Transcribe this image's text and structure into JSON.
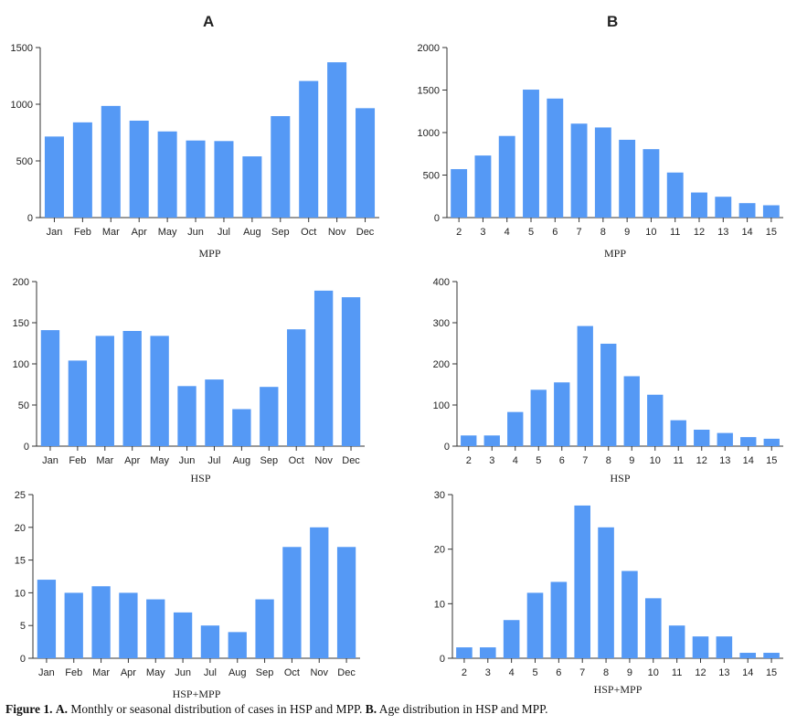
{
  "panel_labels": {
    "a": "A",
    "b": "B"
  },
  "caption": {
    "prefix": "Figure 1.",
    "a_label": "A.",
    "a_text": "Monthly or seasonal distribution of cases in HSP and MPP.",
    "b_label": "B.",
    "b_text": "Age distribution in HSP and MPP."
  },
  "colors": {
    "bar": "#5599f5",
    "axis": "#333333"
  },
  "chart_data": [
    {
      "id": "a-mpp",
      "type": "bar",
      "title": "",
      "xlabel": "MPP",
      "ylabel": "",
      "categories": [
        "Jan",
        "Feb",
        "Mar",
        "Apr",
        "May",
        "Jun",
        "Jul",
        "Aug",
        "Sep",
        "Oct",
        "Nov",
        "Dec"
      ],
      "values": [
        715,
        840,
        985,
        855,
        760,
        680,
        675,
        540,
        895,
        1205,
        1370,
        965
      ],
      "ylim": [
        0,
        1500
      ],
      "yticks": [
        0,
        500,
        1000,
        1500
      ]
    },
    {
      "id": "b-mpp",
      "type": "bar",
      "title": "",
      "xlabel": "MPP",
      "ylabel": "",
      "categories": [
        "2",
        "3",
        "4",
        "5",
        "6",
        "7",
        "8",
        "9",
        "10",
        "11",
        "12",
        "13",
        "14",
        "15"
      ],
      "values": [
        570,
        730,
        960,
        1505,
        1400,
        1105,
        1060,
        915,
        805,
        530,
        295,
        245,
        170,
        145
      ],
      "ylim": [
        0,
        2000
      ],
      "yticks": [
        0,
        500,
        1000,
        1500,
        2000
      ]
    },
    {
      "id": "a-hsp",
      "type": "bar",
      "title": "",
      "xlabel": "HSP",
      "ylabel": "",
      "categories": [
        "Jan",
        "Feb",
        "Mar",
        "Apr",
        "May",
        "Jun",
        "Jul",
        "Aug",
        "Sep",
        "Oct",
        "Nov",
        "Dec"
      ],
      "values": [
        141,
        104,
        134,
        140,
        134,
        73,
        81,
        45,
        72,
        142,
        189,
        181
      ],
      "ylim": [
        0,
        200
      ],
      "yticks": [
        0,
        50,
        100,
        150,
        200
      ]
    },
    {
      "id": "b-hsp",
      "type": "bar",
      "title": "",
      "xlabel": "HSP",
      "ylabel": "",
      "categories": [
        "2",
        "3",
        "4",
        "5",
        "6",
        "7",
        "8",
        "9",
        "10",
        "11",
        "12",
        "13",
        "14",
        "15"
      ],
      "values": [
        26,
        26,
        83,
        137,
        155,
        292,
        249,
        170,
        125,
        63,
        40,
        32,
        22,
        18
      ],
      "ylim": [
        0,
        400
      ],
      "yticks": [
        0,
        100,
        200,
        300,
        400
      ]
    },
    {
      "id": "a-both",
      "type": "bar",
      "title": "",
      "xlabel": "HSP+MPP",
      "ylabel": "",
      "categories": [
        "Jan",
        "Feb",
        "Mar",
        "Apr",
        "May",
        "Jun",
        "Jul",
        "Aug",
        "Sep",
        "Oct",
        "Nov",
        "Dec"
      ],
      "values": [
        12,
        10,
        11,
        10,
        9,
        7,
        5,
        4,
        9,
        17,
        20,
        17
      ],
      "ylim": [
        0,
        25
      ],
      "yticks": [
        0,
        5,
        10,
        15,
        20,
        25
      ]
    },
    {
      "id": "b-both",
      "type": "bar",
      "title": "",
      "xlabel": "HSP+MPP",
      "ylabel": "",
      "categories": [
        "2",
        "3",
        "4",
        "5",
        "6",
        "7",
        "8",
        "9",
        "10",
        "11",
        "12",
        "13",
        "14",
        "15"
      ],
      "values": [
        2,
        2,
        7,
        12,
        14,
        28,
        24,
        16,
        11,
        6,
        4,
        4,
        1,
        1
      ],
      "ylim": [
        0,
        30
      ],
      "yticks": [
        0,
        10,
        20,
        30
      ]
    }
  ]
}
